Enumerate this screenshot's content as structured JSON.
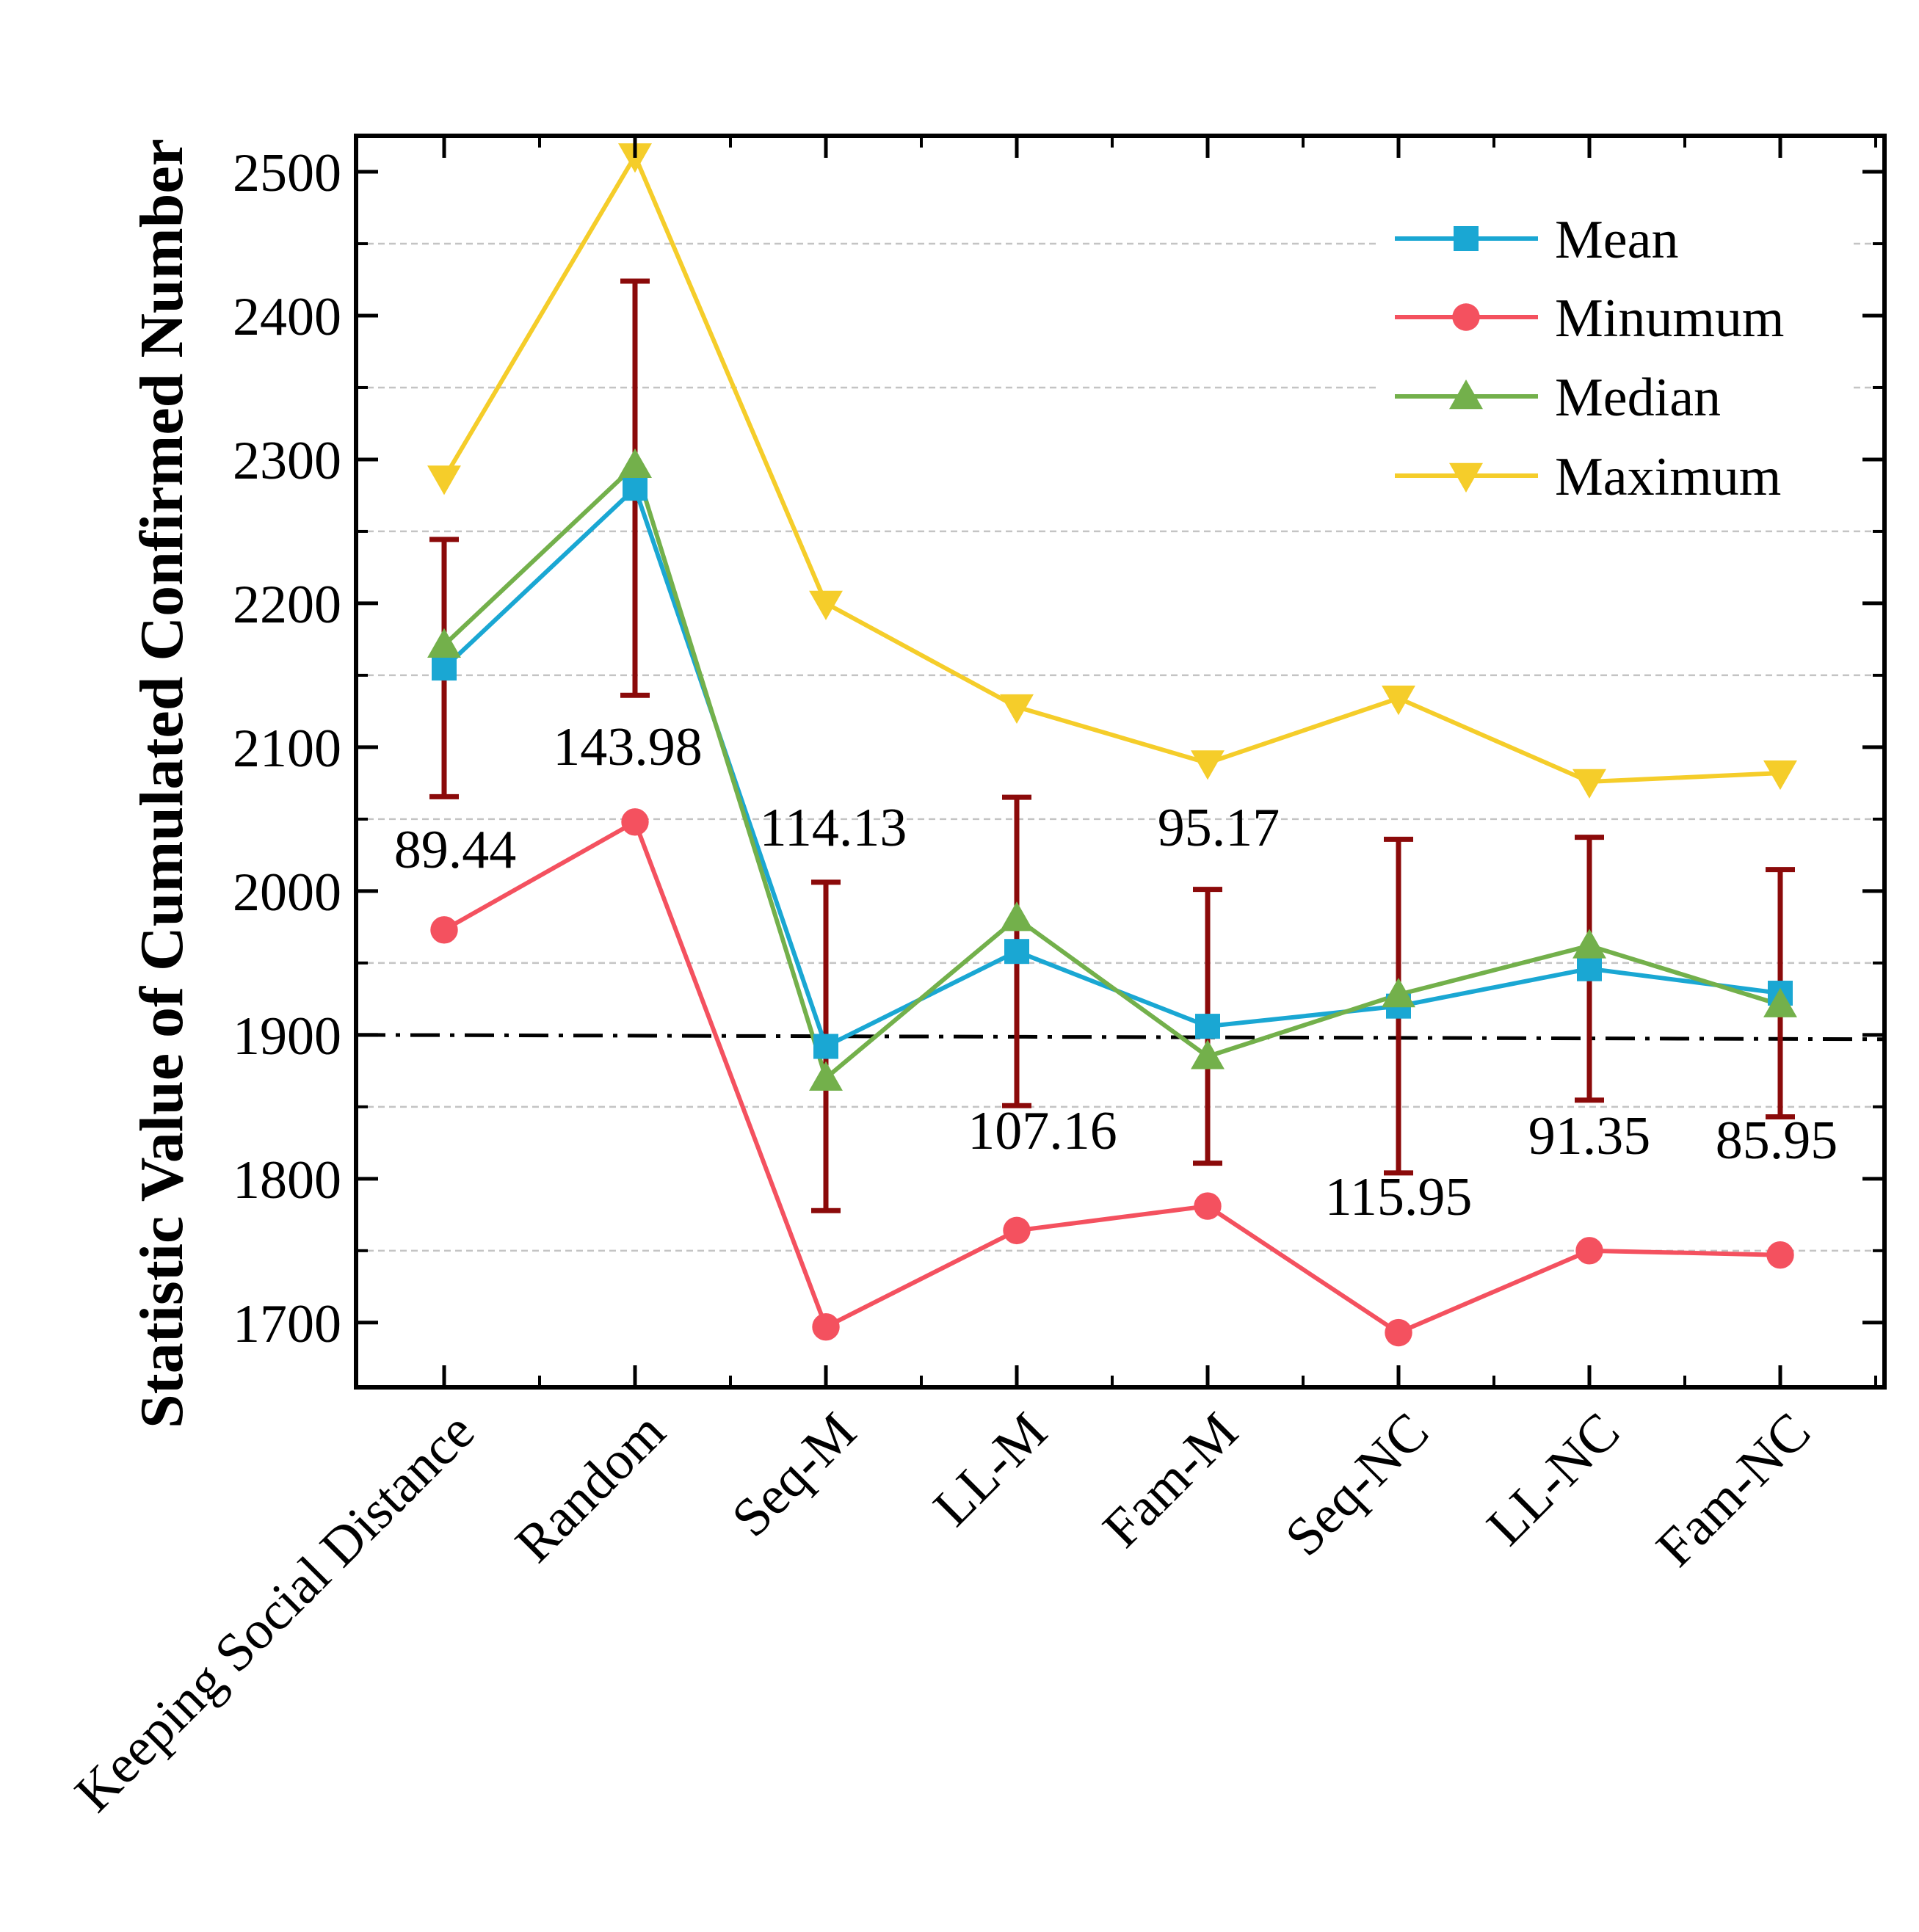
{
  "chart_data": {
    "type": "line",
    "title": "",
    "xlabel": "",
    "ylabel": "Statistic Value of Cumulated Confirmed Number",
    "ylim": [
      1655,
      2525
    ],
    "yticks": [
      1700,
      1800,
      1900,
      2000,
      2100,
      2200,
      2300,
      2400,
      2500
    ],
    "ytick_labels": [
      "1700",
      "1800",
      "1900",
      "2000",
      "2100",
      "2200",
      "2300",
      "2400",
      "2500"
    ],
    "minor_gridlines": [
      1750,
      1850,
      1950,
      2050,
      2150,
      2250,
      2350,
      2450
    ],
    "grid": "dashed minor horizontal",
    "categories": [
      "Keeping Social Distance",
      "Random",
      "Seq-M",
      "LL-M",
      "Fam-M",
      "Seq-NC",
      "LL-NC",
      "Fam-NC"
    ],
    "series": [
      {
        "name": "Mean",
        "color": "#1aa7d3",
        "marker": "square",
        "values": [
          2155,
          2280,
          1892,
          1958,
          1906,
          1920,
          1946,
          1929
        ]
      },
      {
        "name": "Minumum",
        "color": "#f4515f",
        "marker": "circle",
        "values": [
          1973,
          2048,
          1697,
          1764,
          1781,
          1693,
          1750,
          1747
        ]
      },
      {
        "name": "Median",
        "color": "#73b04b",
        "marker": "triangle-up",
        "values": [
          2171,
          2296,
          1870,
          1981,
          1885,
          1928,
          1962,
          1921
        ]
      },
      {
        "name": "Maximum",
        "color": "#f5cd2a",
        "marker": "triangle-down",
        "values": [
          2287,
          2511,
          2200,
          2128,
          2089,
          2134,
          2076,
          2082
        ]
      }
    ],
    "error_bars": {
      "center_series": "Mean",
      "color": "#8b0a0a",
      "std": [
        "89.44",
        "143.98",
        "114.13",
        "107.16",
        "95.17",
        "115.95",
        "91.35",
        "85.95"
      ],
      "std_values": [
        89.44,
        143.98,
        114.13,
        107.16,
        95.17,
        115.95,
        91.35,
        85.95
      ]
    },
    "reference_line": {
      "y_start": 1900,
      "y_end": 1897,
      "style": "dash-dot",
      "color": "#000000"
    },
    "legend": {
      "position": "top-right",
      "entries": [
        "Mean",
        "Minumum",
        "Median",
        "Maximum"
      ]
    }
  }
}
